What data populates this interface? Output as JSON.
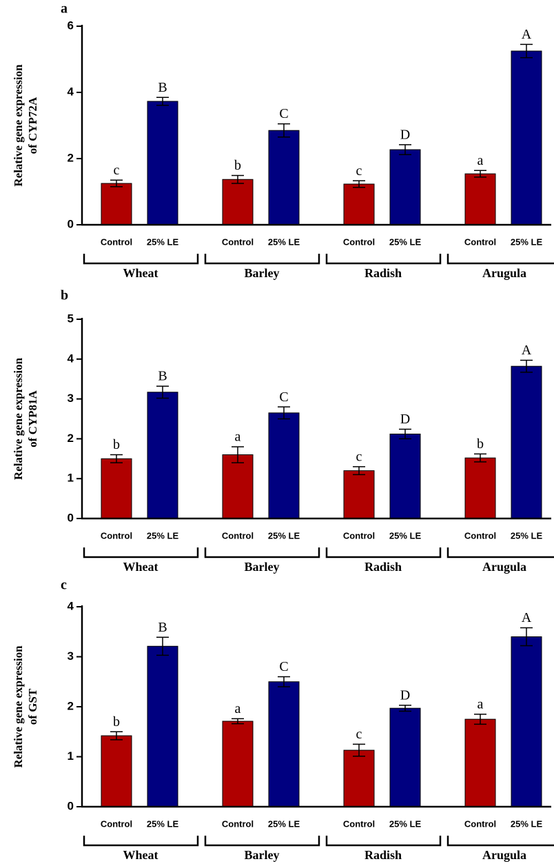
{
  "chart_data": [
    {
      "type": "bar",
      "panel_label": "a",
      "y_label": [
        "Relative gene expression",
        "of CYP72A"
      ],
      "categories": [
        "Wheat",
        "Barley",
        "Radish",
        "Arugula"
      ],
      "series": [
        {
          "name": "Control",
          "color": "#b00000",
          "values": [
            1.25,
            1.37,
            1.23,
            1.54
          ],
          "errors": [
            0.1,
            0.12,
            0.1,
            0.1
          ],
          "labels": [
            "c",
            "b",
            "c",
            "a"
          ]
        },
        {
          "name": "25% LE",
          "color": "#000080",
          "values": [
            3.73,
            2.85,
            2.27,
            5.25
          ],
          "errors": [
            0.12,
            0.2,
            0.15,
            0.2
          ],
          "labels": [
            "B",
            "C",
            "D",
            "A"
          ]
        }
      ],
      "ylim": [
        0,
        6
      ],
      "yticks": [
        0,
        2,
        4,
        6
      ]
    },
    {
      "type": "bar",
      "panel_label": "b",
      "y_label": [
        "Relative gene expression",
        "of CYP81A"
      ],
      "categories": [
        "Wheat",
        "Barley",
        "Radish",
        "Arugula"
      ],
      "series": [
        {
          "name": "Control",
          "color": "#b00000",
          "values": [
            1.5,
            1.6,
            1.2,
            1.52
          ],
          "errors": [
            0.1,
            0.2,
            0.1,
            0.1
          ],
          "labels": [
            "b",
            "a",
            "c",
            "b"
          ]
        },
        {
          "name": "25% LE",
          "color": "#000080",
          "values": [
            3.17,
            2.65,
            2.12,
            3.82
          ],
          "errors": [
            0.15,
            0.15,
            0.12,
            0.15
          ],
          "labels": [
            "B",
            "C",
            "D",
            "A"
          ]
        }
      ],
      "ylim": [
        0,
        5
      ],
      "yticks": [
        0,
        1,
        2,
        3,
        4,
        5
      ]
    },
    {
      "type": "bar",
      "panel_label": "c",
      "y_label": [
        "Relative gene expression",
        "of GST"
      ],
      "categories": [
        "Wheat",
        "Barley",
        "Radish",
        "Arugula"
      ],
      "series": [
        {
          "name": "Control",
          "color": "#b00000",
          "values": [
            1.42,
            1.71,
            1.13,
            1.75
          ],
          "errors": [
            0.08,
            0.05,
            0.12,
            0.1
          ],
          "labels": [
            "b",
            "a",
            "c",
            "a"
          ]
        },
        {
          "name": "25% LE",
          "color": "#000080",
          "values": [
            3.21,
            2.5,
            1.97,
            3.4
          ],
          "errors": [
            0.18,
            0.1,
            0.06,
            0.18
          ],
          "labels": [
            "B",
            "C",
            "D",
            "A"
          ]
        }
      ],
      "ylim": [
        0,
        4
      ],
      "yticks": [
        0,
        1,
        2,
        3,
        4
      ]
    }
  ]
}
